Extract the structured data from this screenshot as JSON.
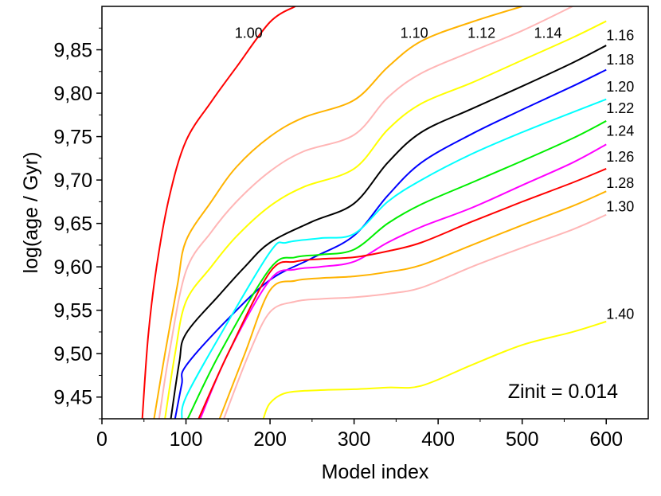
{
  "chart_data": {
    "type": "line",
    "title": "",
    "xlabel": "Model index",
    "ylabel": "log(age / Gyr)",
    "xlim": [
      0,
      650
    ],
    "ylim": [
      9.425,
      9.9
    ],
    "x_ticks": [
      0,
      100,
      200,
      300,
      400,
      500,
      600
    ],
    "x_tick_labels": [
      "0",
      "100",
      "200",
      "300",
      "400",
      "500",
      "600"
    ],
    "y_ticks": [
      9.45,
      9.5,
      9.55,
      9.6,
      9.65,
      9.7,
      9.75,
      9.8,
      9.85
    ],
    "y_tick_labels": [
      "9,45",
      "9,50",
      "9,55",
      "9,60",
      "9,65",
      "9,70",
      "9,75",
      "9,80",
      "9,85"
    ],
    "grid": false,
    "annotation": "Zinit = 0.014",
    "series": [
      {
        "name": "1.00",
        "color": "#ff0000",
        "points": [
          [
            48,
            9.425
          ],
          [
            55,
            9.52
          ],
          [
            65,
            9.6
          ],
          [
            80,
            9.68
          ],
          [
            100,
            9.745
          ],
          [
            130,
            9.79
          ],
          [
            160,
            9.83
          ],
          [
            200,
            9.882
          ],
          [
            230,
            9.9
          ]
        ]
      },
      {
        "name": "1.10",
        "color": "#ffb300",
        "points": [
          [
            62,
            9.425
          ],
          [
            75,
            9.5
          ],
          [
            90,
            9.58
          ],
          [
            100,
            9.63
          ],
          [
            130,
            9.675
          ],
          [
            160,
            9.715
          ],
          [
            200,
            9.75
          ],
          [
            240,
            9.772
          ],
          [
            300,
            9.792
          ],
          [
            340,
            9.83
          ],
          [
            380,
            9.86
          ],
          [
            440,
            9.882
          ],
          [
            500,
            9.9
          ]
        ]
      },
      {
        "name": "1.12",
        "color": "#ffb6b6",
        "points": [
          [
            68,
            9.425
          ],
          [
            80,
            9.5
          ],
          [
            100,
            9.595
          ],
          [
            130,
            9.64
          ],
          [
            160,
            9.675
          ],
          [
            200,
            9.71
          ],
          [
            240,
            9.733
          ],
          [
            300,
            9.752
          ],
          [
            340,
            9.795
          ],
          [
            380,
            9.823
          ],
          [
            440,
            9.848
          ],
          [
            500,
            9.872
          ],
          [
            560,
            9.9
          ]
        ]
      },
      {
        "name": "1.14",
        "color": "#ffff00",
        "points": [
          [
            75,
            9.425
          ],
          [
            87,
            9.5
          ],
          [
            100,
            9.56
          ],
          [
            130,
            9.6
          ],
          [
            160,
            9.635
          ],
          [
            200,
            9.67
          ],
          [
            240,
            9.692
          ],
          [
            300,
            9.713
          ],
          [
            340,
            9.758
          ],
          [
            380,
            9.788
          ],
          [
            440,
            9.812
          ],
          [
            500,
            9.838
          ],
          [
            560,
            9.864
          ],
          [
            600,
            9.883
          ]
        ]
      },
      {
        "name": "1.16",
        "color": "#000000",
        "points": [
          [
            82,
            9.425
          ],
          [
            92,
            9.49
          ],
          [
            100,
            9.523
          ],
          [
            140,
            9.568
          ],
          [
            170,
            9.6
          ],
          [
            200,
            9.628
          ],
          [
            250,
            9.652
          ],
          [
            300,
            9.673
          ],
          [
            340,
            9.72
          ],
          [
            380,
            9.755
          ],
          [
            440,
            9.782
          ],
          [
            500,
            9.808
          ],
          [
            560,
            9.835
          ],
          [
            600,
            9.855
          ]
        ]
      },
      {
        "name": "1.18",
        "color": "#0000ff",
        "points": [
          [
            87,
            9.425
          ],
          [
            95,
            9.465
          ],
          [
            100,
            9.486
          ],
          [
            150,
            9.54
          ],
          [
            200,
            9.585
          ],
          [
            250,
            9.61
          ],
          [
            300,
            9.636
          ],
          [
            340,
            9.682
          ],
          [
            380,
            9.72
          ],
          [
            440,
            9.753
          ],
          [
            500,
            9.781
          ],
          [
            560,
            9.808
          ],
          [
            600,
            9.827
          ]
        ]
      },
      {
        "name": "1.20",
        "color": "#00ffff",
        "points": [
          [
            95,
            9.425
          ],
          [
            100,
            9.45
          ],
          [
            140,
            9.52
          ],
          [
            200,
            9.617
          ],
          [
            220,
            9.628
          ],
          [
            260,
            9.633
          ],
          [
            300,
            9.638
          ],
          [
            340,
            9.675
          ],
          [
            380,
            9.7
          ],
          [
            440,
            9.73
          ],
          [
            500,
            9.755
          ],
          [
            560,
            9.778
          ],
          [
            600,
            9.793
          ]
        ]
      },
      {
        "name": "1.22",
        "color": "#00ee00",
        "points": [
          [
            102,
            9.425
          ],
          [
            140,
            9.5
          ],
          [
            200,
            9.598
          ],
          [
            230,
            9.611
          ],
          [
            260,
            9.614
          ],
          [
            300,
            9.62
          ],
          [
            340,
            9.65
          ],
          [
            380,
            9.672
          ],
          [
            440,
            9.697
          ],
          [
            500,
            9.722
          ],
          [
            560,
            9.748
          ],
          [
            600,
            9.768
          ]
        ]
      },
      {
        "name": "1.24",
        "color": "#ff00ff",
        "points": [
          [
            117,
            9.425
          ],
          [
            150,
            9.5
          ],
          [
            200,
            9.585
          ],
          [
            230,
            9.597
          ],
          [
            260,
            9.6
          ],
          [
            300,
            9.606
          ],
          [
            340,
            9.628
          ],
          [
            380,
            9.646
          ],
          [
            440,
            9.668
          ],
          [
            500,
            9.694
          ],
          [
            560,
            9.72
          ],
          [
            600,
            9.741
          ]
        ]
      },
      {
        "name": "1.26",
        "color": "#ff0000",
        "points": [
          [
            115,
            9.425
          ],
          [
            150,
            9.5
          ],
          [
            200,
            9.594
          ],
          [
            230,
            9.606
          ],
          [
            260,
            9.609
          ],
          [
            300,
            9.611
          ],
          [
            340,
            9.618
          ],
          [
            380,
            9.628
          ],
          [
            440,
            9.652
          ],
          [
            500,
            9.675
          ],
          [
            560,
            9.697
          ],
          [
            600,
            9.713
          ]
        ]
      },
      {
        "name": "1.28",
        "color": "#ffb300",
        "points": [
          [
            140,
            9.425
          ],
          [
            170,
            9.5
          ],
          [
            200,
            9.573
          ],
          [
            230,
            9.584
          ],
          [
            260,
            9.587
          ],
          [
            300,
            9.589
          ],
          [
            340,
            9.594
          ],
          [
            380,
            9.602
          ],
          [
            440,
            9.625
          ],
          [
            500,
            9.648
          ],
          [
            560,
            9.67
          ],
          [
            600,
            9.687
          ]
        ]
      },
      {
        "name": "1.30",
        "color": "#ffb6b6",
        "points": [
          [
            145,
            9.425
          ],
          [
            175,
            9.5
          ],
          [
            200,
            9.548
          ],
          [
            230,
            9.56
          ],
          [
            260,
            9.563
          ],
          [
            300,
            9.565
          ],
          [
            340,
            9.569
          ],
          [
            380,
            9.576
          ],
          [
            440,
            9.6
          ],
          [
            500,
            9.622
          ],
          [
            560,
            9.643
          ],
          [
            600,
            9.66
          ]
        ]
      },
      {
        "name": "1.40",
        "color": "#ffff00",
        "points": [
          [
            192,
            9.425
          ],
          [
            200,
            9.443
          ],
          [
            220,
            9.455
          ],
          [
            260,
            9.458
          ],
          [
            300,
            9.459
          ],
          [
            340,
            9.461
          ],
          [
            380,
            9.463
          ],
          [
            440,
            9.487
          ],
          [
            500,
            9.51
          ],
          [
            560,
            9.525
          ],
          [
            600,
            9.537
          ]
        ]
      }
    ],
    "labels": [
      {
        "text": "1.00",
        "x": 158,
        "y": 9.864
      },
      {
        "text": "1.10",
        "x": 355,
        "y": 9.864
      },
      {
        "text": "1.12",
        "x": 435,
        "y": 9.864
      },
      {
        "text": "1.14",
        "x": 514,
        "y": 9.864
      },
      {
        "text": "1.16",
        "x": 600,
        "y": 9.861
      },
      {
        "text": "1.18",
        "x": 600,
        "y": 9.833
      },
      {
        "text": "1.20",
        "x": 600,
        "y": 9.802
      },
      {
        "text": "1.22",
        "x": 600,
        "y": 9.777
      },
      {
        "text": "1.24",
        "x": 600,
        "y": 9.751
      },
      {
        "text": "1.26",
        "x": 600,
        "y": 9.721
      },
      {
        "text": "1.28",
        "x": 600,
        "y": 9.691
      },
      {
        "text": "1.30",
        "x": 600,
        "y": 9.664
      },
      {
        "text": "1.40",
        "x": 600,
        "y": 9.54
      }
    ]
  }
}
